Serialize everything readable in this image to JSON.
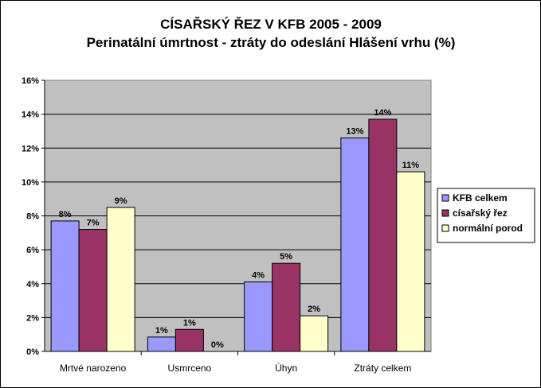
{
  "chart_data": {
    "type": "bar",
    "title": "CÍSAŘSKÝ ŘEZ V KFB 2005 - 2009",
    "subtitle": "Perinatální úmrtnost - ztráty do odeslání Hlášení vrhu (%)",
    "categories": [
      "Mrtvé narozeno",
      "Usmrceno",
      "Úhyn",
      "Ztráty celkem"
    ],
    "series": [
      {
        "name": "KFB celkem",
        "color": "#9999ff",
        "values": [
          7.7,
          0.85,
          4.1,
          12.6
        ],
        "labels": [
          "8%",
          "1%",
          "4%",
          "13%"
        ]
      },
      {
        "name": "císařský řez",
        "color": "#993366",
        "values": [
          7.2,
          1.3,
          5.2,
          13.7
        ],
        "labels": [
          "7%",
          "1%",
          "5%",
          "14%"
        ]
      },
      {
        "name": "normální porod",
        "color": "#ffffcc",
        "values": [
          8.5,
          0.0,
          2.1,
          10.6
        ],
        "labels": [
          "9%",
          "0%",
          "2%",
          "11%"
        ]
      }
    ],
    "ylim": [
      0,
      16
    ],
    "yticks": [
      "0%",
      "2%",
      "4%",
      "6%",
      "8%",
      "10%",
      "12%",
      "14%",
      "16%"
    ],
    "xlabel": "",
    "ylabel": "",
    "grid": true,
    "legend_position": "right",
    "plot_background": "#c0c0c0"
  }
}
